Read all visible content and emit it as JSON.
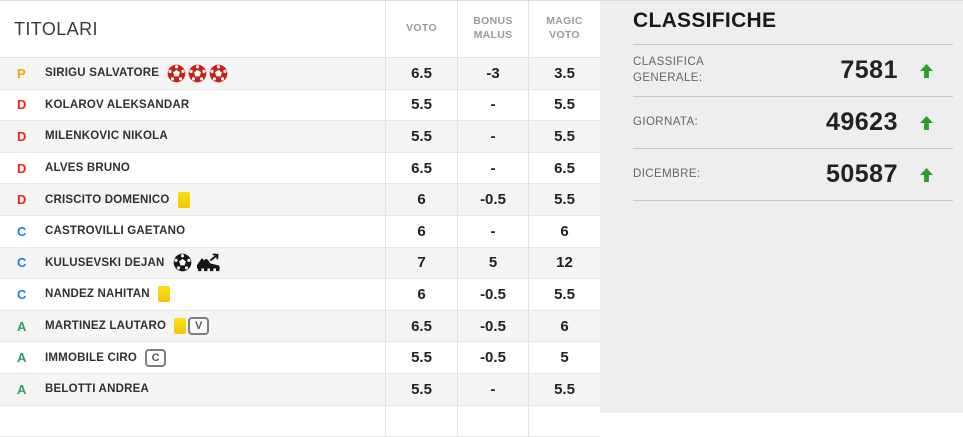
{
  "table": {
    "title": "TITOLARI",
    "columns": [
      "VOTO",
      "BONUS MALUS",
      "MAGIC VOTO"
    ],
    "rows": [
      {
        "role": "P",
        "name": "SIRIGU SALVATORE",
        "icons": [
          "goal-conceded",
          "goal-conceded",
          "goal-conceded"
        ],
        "voto": "6.5",
        "bonus": "-3",
        "magic": "3.5"
      },
      {
        "role": "D",
        "name": "KOLAROV ALEKSANDAR",
        "icons": [],
        "voto": "5.5",
        "bonus": "-",
        "magic": "5.5"
      },
      {
        "role": "D",
        "name": "MILENKOVIC NIKOLA",
        "icons": [],
        "voto": "5.5",
        "bonus": "-",
        "magic": "5.5"
      },
      {
        "role": "D",
        "name": "ALVES BRUNO",
        "icons": [],
        "voto": "6.5",
        "bonus": "-",
        "magic": "6.5"
      },
      {
        "role": "D",
        "name": "CRISCITO DOMENICO",
        "icons": [
          "yellow-card"
        ],
        "voto": "6",
        "bonus": "-0.5",
        "magic": "5.5"
      },
      {
        "role": "C",
        "name": "CASTROVILLI GAETANO",
        "icons": [],
        "voto": "6",
        "bonus": "-",
        "magic": "6"
      },
      {
        "role": "C",
        "name": "KULUSEVSKI DEJAN",
        "icons": [
          "goal-scored",
          "assist"
        ],
        "voto": "7",
        "bonus": "5",
        "magic": "12"
      },
      {
        "role": "C",
        "name": "NANDEZ NAHITAN",
        "icons": [
          "yellow-card"
        ],
        "voto": "6",
        "bonus": "-0.5",
        "magic": "5.5"
      },
      {
        "role": "A",
        "name": "MARTINEZ LAUTARO",
        "icons": [
          "yellow-card",
          "badge-V"
        ],
        "voto": "6.5",
        "bonus": "-0.5",
        "magic": "6"
      },
      {
        "role": "A",
        "name": "IMMOBILE CIRO",
        "icons": [
          "badge-C"
        ],
        "voto": "5.5",
        "bonus": "-0.5",
        "magic": "5"
      },
      {
        "role": "A",
        "name": "BELOTTI ANDREA",
        "icons": [],
        "voto": "5.5",
        "bonus": "-",
        "magic": "5.5"
      }
    ]
  },
  "panel": {
    "title": "CLASSIFICHE",
    "entries": [
      {
        "label": "CLASSIFICA GENERALE:",
        "value": "7581",
        "trend": "up"
      },
      {
        "label": "GIORNATA:",
        "value": "49623",
        "trend": "up"
      },
      {
        "label": "DICEMBRE:",
        "value": "50587",
        "trend": "up"
      }
    ]
  },
  "colors": {
    "role_P": "#f7a600",
    "role_D": "#e8241d",
    "role_C": "#1a7ee5",
    "role_A": "#2aa35f",
    "trend_up": "#27a227",
    "yellow_card": "#fcd20a",
    "goal_conceded": "#cc2015",
    "goal_scored": "#161616"
  }
}
